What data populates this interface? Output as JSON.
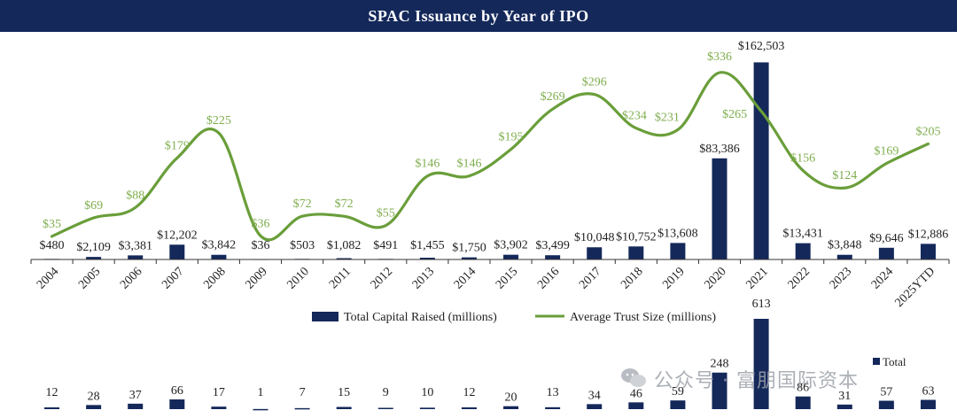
{
  "title": "SPAC Issuance by Year of IPO",
  "colors": {
    "bar": "#14285a",
    "line": "#6a9e3a",
    "line_label": "#7fae4e",
    "title_bg": "#14285a"
  },
  "watermark": "公众号 · 富朋国际资本",
  "chart_data": [
    {
      "type": "bar+line",
      "title": "SPAC Issuance by Year of IPO",
      "categories": [
        "2004",
        "2005",
        "2006",
        "2007",
        "2008",
        "2009",
        "2010",
        "2011",
        "2012",
        "2013",
        "2014",
        "2015",
        "2016",
        "2017",
        "2018",
        "2019",
        "2020",
        "2021",
        "2022",
        "2023",
        "2024",
        "2025YTD"
      ],
      "series": [
        {
          "name": "Total Capital Raised (millions)",
          "type": "bar",
          "values": [
            480,
            2109,
            3381,
            12202,
            3842,
            36,
            503,
            1082,
            491,
            1455,
            1750,
            3902,
            3499,
            10048,
            10752,
            13608,
            83386,
            162503,
            13431,
            3848,
            9646,
            12886
          ],
          "labels": [
            "$480",
            "$2,109",
            "$3,381",
            "$12,202",
            "$3,842",
            "$36",
            "$503",
            "$1,082",
            "$491",
            "$1,455",
            "$1,750",
            "$3,902",
            "$3,499",
            "$10,048",
            "$10,752",
            "$13,608",
            "$83,386",
            "$162,503",
            "$13,431",
            "$3,848",
            "$9,646",
            "$12,886"
          ]
        },
        {
          "name": "Average Trust Size (millions)",
          "type": "line",
          "values": [
            35,
            69,
            88,
            179,
            225,
            36,
            72,
            72,
            55,
            146,
            146,
            195,
            269,
            296,
            234,
            231,
            336,
            265,
            156,
            124,
            169,
            205
          ],
          "labels": [
            "$35",
            "$69",
            "$88",
            "$179",
            "$225",
            "$36",
            "$72",
            "$72",
            "$55",
            "$146",
            "$146",
            "$195",
            "$269",
            "$296",
            "$234",
            "$231",
            "$336",
            "$265",
            "$156",
            "$124",
            "$169",
            "$205"
          ]
        }
      ],
      "ylim_bar": [
        0,
        165000
      ],
      "ylim_line": [
        0,
        340
      ],
      "legend": [
        "Total Capital Raised (millions)",
        "Average Trust Size (millions)"
      ],
      "legend_position": "bottom"
    },
    {
      "type": "bar",
      "categories": [
        "2004",
        "2005",
        "2006",
        "2007",
        "2008",
        "2009",
        "2010",
        "2011",
        "2012",
        "2013",
        "2014",
        "2015",
        "2016",
        "2017",
        "2018",
        "2019",
        "2020",
        "2021",
        "2022",
        "2023",
        "2024",
        "2025YTD"
      ],
      "series": [
        {
          "name": "Total",
          "values": [
            12,
            28,
            37,
            66,
            17,
            1,
            7,
            15,
            9,
            10,
            12,
            20,
            13,
            34,
            46,
            59,
            248,
            613,
            86,
            31,
            57,
            63
          ]
        }
      ],
      "ylim": [
        0,
        613
      ],
      "legend": [
        "Total"
      ],
      "legend_position": "top-right"
    }
  ]
}
